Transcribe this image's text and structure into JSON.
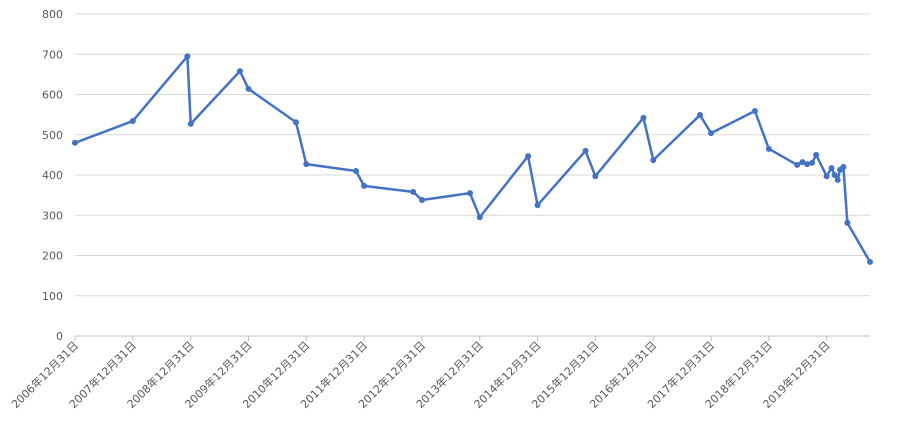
{
  "chart_data": {
    "type": "line",
    "x": [
      "2006-12-31",
      "2007-12-31",
      "2008-12-10",
      "2008-12-31",
      "2009-11-07",
      "2009-12-31",
      "2010-10-27",
      "2010-12-31",
      "2011-11-10",
      "2011-12-31",
      "2012-11-05",
      "2012-12-31",
      "2013-10-30",
      "2013-12-31",
      "2014-11-01",
      "2014-12-31",
      "2015-10-30",
      "2015-12-31",
      "2016-10-30",
      "2016-12-31",
      "2017-10-22",
      "2017-12-31",
      "2018-10-04",
      "2018-12-31",
      "2019-06-28",
      "2019-07-31",
      "2019-08-30",
      "2019-09-30",
      "2019-10-26",
      "2019-12-31",
      "2020-01-31",
      "2020-02-20",
      "2020-03-10",
      "2020-03-25",
      "2020-04-15",
      "2020-05-10",
      "2020-09-30"
    ],
    "series": [
      {
        "color": "#4472c4",
        "values": [
          480,
          534,
          695,
          527,
          658,
          614,
          531,
          427,
          410,
          373,
          358,
          338,
          355,
          295,
          447,
          325,
          460,
          397,
          542,
          437,
          549,
          504,
          559,
          465,
          425,
          432,
          427,
          430,
          450,
          397,
          417,
          400,
          388,
          413,
          420,
          281,
          184
        ]
      }
    ],
    "xlim": [
      "2006-12-31",
      "2020-09-30"
    ],
    "xticks": [
      {
        "value": "2006-12-31",
        "label": "2006年12月31日"
      },
      {
        "value": "2007-12-31",
        "label": "2007年12月31日"
      },
      {
        "value": "2008-12-31",
        "label": "2008年12月31日"
      },
      {
        "value": "2009-12-31",
        "label": "2009年12月31日"
      },
      {
        "value": "2010-12-31",
        "label": "2010年12月31日"
      },
      {
        "value": "2011-12-31",
        "label": "2011年12月31日"
      },
      {
        "value": "2012-12-31",
        "label": "2012年12月31日"
      },
      {
        "value": "2013-12-31",
        "label": "2013年12月31日"
      },
      {
        "value": "2014-12-31",
        "label": "2014年12月31日"
      },
      {
        "value": "2015-12-31",
        "label": "2015年12月31日"
      },
      {
        "value": "2016-12-31",
        "label": "2016年12月31日"
      },
      {
        "value": "2017-12-31",
        "label": "2017年12月31日"
      },
      {
        "value": "2018-12-31",
        "label": "2018年12月31日"
      },
      {
        "value": "2019-12-31",
        "label": "2019年12月31日"
      }
    ],
    "ylim": [
      0,
      800
    ],
    "yticks": [
      0,
      100,
      200,
      300,
      400,
      500,
      600,
      700,
      800
    ],
    "grid": true
  }
}
